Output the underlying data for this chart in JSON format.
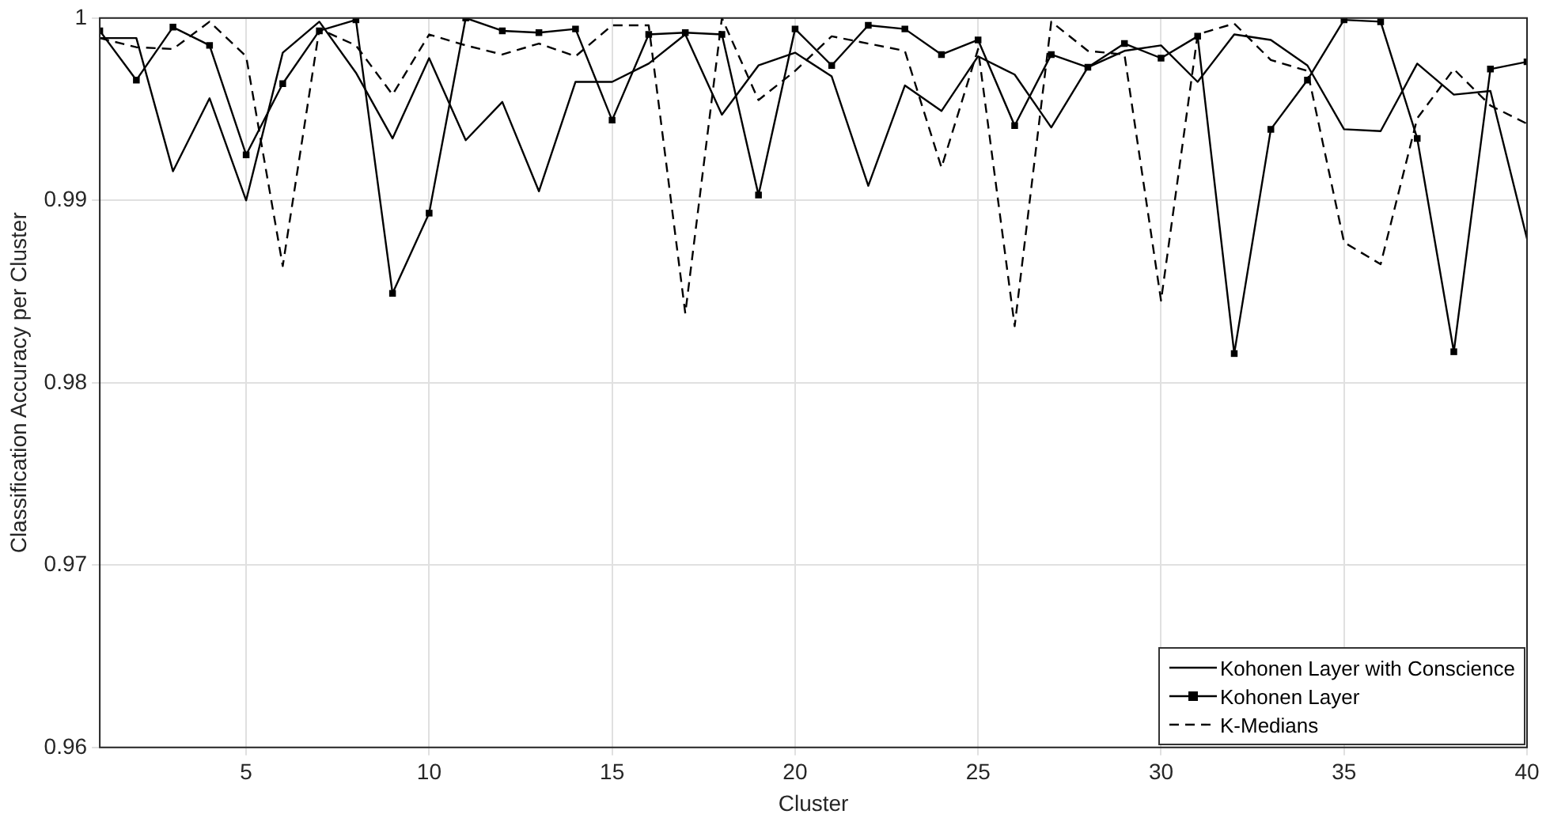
{
  "chart_data": {
    "type": "line",
    "xlabel": "Cluster",
    "ylabel": "Classification Accuracy per Cluster",
    "x": [
      1,
      2,
      3,
      4,
      5,
      6,
      7,
      8,
      9,
      10,
      11,
      12,
      13,
      14,
      15,
      16,
      17,
      18,
      19,
      20,
      21,
      22,
      23,
      24,
      25,
      26,
      27,
      28,
      29,
      30,
      31,
      32,
      33,
      34,
      35,
      36,
      37,
      38,
      39,
      40
    ],
    "xlim": [
      1,
      40
    ],
    "xticks": [
      5,
      10,
      15,
      20,
      25,
      30,
      35,
      40
    ],
    "ylim": [
      0.96,
      1
    ],
    "yticks": [
      0.96,
      0.97,
      0.98,
      0.99,
      1
    ],
    "grid": true,
    "legend": "bottom right",
    "series": [
      {
        "name": "Kohonen Layer with Conscience",
        "color": "#000000",
        "marker": "none",
        "line_style": "solid",
        "values": [
          0.9989,
          0.9989,
          0.9916,
          0.9956,
          0.99,
          0.9981,
          0.9998,
          0.997,
          0.9934,
          0.9978,
          0.9933,
          0.9954,
          0.9905,
          0.9965,
          0.9965,
          0.9975,
          0.9991,
          0.9947,
          0.9974,
          0.9981,
          0.9968,
          0.9908,
          0.9963,
          0.9949,
          0.9979,
          0.9969,
          0.994,
          0.9973,
          0.9982,
          0.9985,
          0.9965,
          0.9991,
          0.9988,
          0.9974,
          0.9939,
          0.9938,
          0.9975,
          0.9958,
          0.996,
          0.9879
        ]
      },
      {
        "name": "Kohonen Layer",
        "color": "#000000",
        "marker": "square",
        "line_style": "solid",
        "values": [
          0.9993,
          0.9966,
          0.9995,
          0.9985,
          0.9925,
          0.9964,
          0.9993,
          0.9999,
          0.9849,
          0.9893,
          1.0,
          0.9993,
          0.9992,
          0.9994,
          0.9944,
          0.9991,
          0.9992,
          0.9991,
          0.9903,
          0.9994,
          0.9974,
          0.9996,
          0.9994,
          0.998,
          0.9988,
          0.9941,
          0.998,
          0.9973,
          0.9986,
          0.9978,
          0.999,
          0.9816,
          0.9939,
          0.9966,
          0.9999,
          0.9998,
          0.9934,
          0.9817,
          0.9972,
          0.9976
        ]
      },
      {
        "name": "K-Medians",
        "color": "#000000",
        "marker": "none",
        "line_style": "dashed",
        "values": [
          0.9989,
          0.9984,
          0.9983,
          0.9998,
          0.9979,
          0.9864,
          0.9994,
          0.9985,
          0.9958,
          0.9991,
          0.9985,
          0.998,
          0.9986,
          0.9979,
          0.9996,
          0.9996,
          0.9838,
          1.0,
          0.9955,
          0.9971,
          0.999,
          0.9986,
          0.9982,
          0.9918,
          0.9983,
          0.9831,
          0.9998,
          0.9982,
          0.998,
          0.9845,
          0.9991,
          0.9997,
          0.9977,
          0.9971,
          0.9877,
          0.9865,
          0.9945,
          0.9972,
          0.9952,
          0.9942
        ]
      }
    ]
  }
}
